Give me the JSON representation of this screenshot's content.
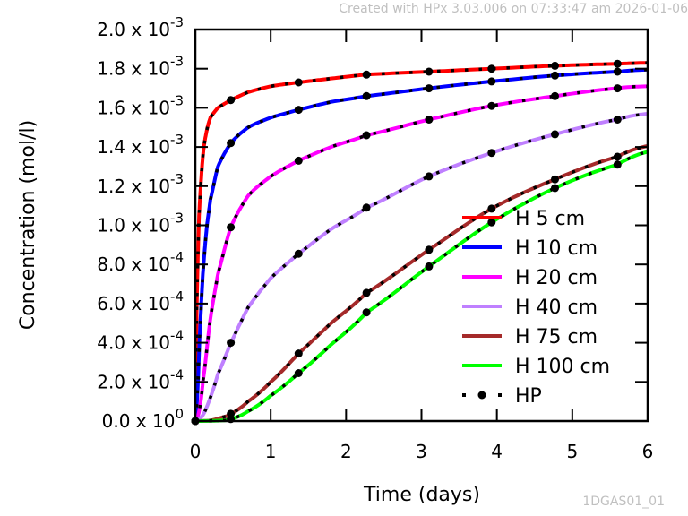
{
  "header": {
    "credit": "Created with HPx 3.03.006 on 07:33:47 am 2026-01-06"
  },
  "footer": {
    "figure_id": "1DGAS01_01"
  },
  "chart_data": {
    "type": "line",
    "title": "",
    "xlabel": "Time (days)",
    "ylabel": "Concentration (mol/l)",
    "xlim": [
      0,
      6
    ],
    "ylim": [
      0,
      0.002
    ],
    "grid": false,
    "legend_position": "bottom-right",
    "x_ticks": [
      {
        "value": 0,
        "label": "0"
      },
      {
        "value": 1,
        "label": "1"
      },
      {
        "value": 2,
        "label": "2"
      },
      {
        "value": 3,
        "label": "3"
      },
      {
        "value": 4,
        "label": "4"
      },
      {
        "value": 5,
        "label": "5"
      },
      {
        "value": 6,
        "label": "6"
      }
    ],
    "y_ticks": [
      {
        "value": 0.0,
        "mantissa": "0.0 x 10",
        "exponent": "0"
      },
      {
        "value": 0.0002,
        "mantissa": "2.0 x 10",
        "exponent": "-4"
      },
      {
        "value": 0.0004,
        "mantissa": "4.0 x 10",
        "exponent": "-4"
      },
      {
        "value": 0.0006,
        "mantissa": "6.0 x 10",
        "exponent": "-4"
      },
      {
        "value": 0.0008,
        "mantissa": "8.0 x 10",
        "exponent": "-4"
      },
      {
        "value": 0.001,
        "mantissa": "1.0 x 10",
        "exponent": "-3"
      },
      {
        "value": 0.0012,
        "mantissa": "1.2 x 10",
        "exponent": "-3"
      },
      {
        "value": 0.0014,
        "mantissa": "1.4 x 10",
        "exponent": "-3"
      },
      {
        "value": 0.0016,
        "mantissa": "1.6 x 10",
        "exponent": "-3"
      },
      {
        "value": 0.0018,
        "mantissa": "1.8 x 10",
        "exponent": "-3"
      },
      {
        "value": 0.002,
        "mantissa": "2.0 x 10",
        "exponent": "-3"
      }
    ],
    "series": [
      {
        "name": "H 5 cm",
        "color": "#ff0000",
        "x": [
          0,
          0.02,
          0.05,
          0.1,
          0.15,
          0.2,
          0.3,
          0.47,
          0.7,
          1.0,
          1.37,
          1.8,
          2.27,
          3.1,
          3.93,
          4.77,
          5.6,
          6.0
        ],
        "y": [
          0,
          0.0006,
          0.00105,
          0.00135,
          0.00148,
          0.00155,
          0.0016,
          0.00164,
          0.00168,
          0.00171,
          0.00173,
          0.00175,
          0.00177,
          0.001785,
          0.0018,
          0.001815,
          0.001825,
          0.00183
        ]
      },
      {
        "name": "H 10 cm",
        "color": "#0000ff",
        "x": [
          0,
          0.03,
          0.06,
          0.1,
          0.15,
          0.2,
          0.3,
          0.47,
          0.7,
          1.0,
          1.37,
          1.8,
          2.27,
          3.1,
          3.93,
          4.77,
          5.6,
          6.0
        ],
        "y": [
          0,
          0.00015,
          0.00045,
          0.00075,
          0.00098,
          0.00113,
          0.0013,
          0.00142,
          0.0015,
          0.00155,
          0.00159,
          0.00163,
          0.00166,
          0.0017,
          0.001735,
          0.001765,
          0.001785,
          0.001795
        ]
      },
      {
        "name": "H 20 cm",
        "color": "#ff00ff",
        "x": [
          0,
          0.05,
          0.1,
          0.2,
          0.3,
          0.47,
          0.7,
          1.0,
          1.37,
          1.8,
          2.27,
          3.1,
          3.93,
          4.77,
          5.6,
          6.0
        ],
        "y": [
          0,
          5e-05,
          0.0002,
          0.00052,
          0.00075,
          0.00099,
          0.00115,
          0.00125,
          0.00133,
          0.0014,
          0.00146,
          0.00154,
          0.00161,
          0.00166,
          0.0017,
          0.00171
        ]
      },
      {
        "name": "H 40 cm",
        "color": "#bf80ff",
        "x": [
          0,
          0.1,
          0.2,
          0.3,
          0.47,
          0.7,
          1.0,
          1.37,
          1.8,
          2.27,
          3.1,
          3.93,
          4.77,
          5.6,
          6.0
        ],
        "y": [
          0,
          3e-05,
          0.00012,
          0.00024,
          0.0004,
          0.00058,
          0.00073,
          0.000855,
          0.00098,
          0.00109,
          0.00125,
          0.00137,
          0.001465,
          0.00154,
          0.00157
        ]
      },
      {
        "name": "H 75 cm",
        "color": "#a52a2a",
        "x": [
          0,
          0.2,
          0.35,
          0.47,
          0.7,
          1.0,
          1.37,
          1.8,
          2.27,
          3.1,
          3.93,
          4.77,
          5.6,
          6.0
        ],
        "y": [
          0,
          3e-06,
          1.8e-05,
          3.7e-05,
          0.0001,
          0.0002,
          0.000345,
          0.0005,
          0.000655,
          0.000875,
          0.001085,
          0.001235,
          0.00135,
          0.001405
        ]
      },
      {
        "name": "H 100 cm",
        "color": "#00ff00",
        "x": [
          0,
          0.3,
          0.47,
          0.7,
          1.0,
          1.37,
          1.8,
          2.27,
          3.1,
          3.93,
          4.77,
          5.6,
          6.0
        ],
        "y": [
          0,
          2e-06,
          1e-05,
          5e-05,
          0.00013,
          0.000245,
          0.00039,
          0.000555,
          0.00079,
          0.001015,
          0.00119,
          0.00131,
          0.001375
        ]
      }
    ],
    "reference": {
      "name": "HP",
      "color": "#000000",
      "marker_x": [
        0,
        0.47,
        1.37,
        2.27,
        3.1,
        3.93,
        4.77,
        5.6
      ]
    }
  }
}
